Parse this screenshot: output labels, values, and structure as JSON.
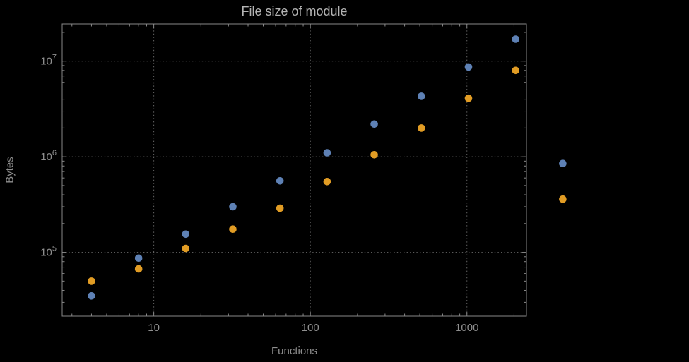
{
  "title": "File size of module",
  "xlabel": "Functions",
  "ylabel": "Bytes",
  "colors": {
    "background": "#000000",
    "frame": "#898989",
    "grid": "#686868",
    "tick_text": "#8f8f8f",
    "title_text": "#b4b4b4",
    "axis_label_text": "#8f8f8f",
    "series_blue": "#5e81b5",
    "series_orange": "#e19c24"
  },
  "chart_data": {
    "type": "scatter",
    "title": "File size of module",
    "xlabel": "Functions",
    "ylabel": "Bytes",
    "xscale": "log",
    "yscale": "log",
    "xlim": [
      2.6,
      2400
    ],
    "ylim": [
      21500,
      24500000
    ],
    "x_ticks": [
      10,
      100,
      1000
    ],
    "x_tick_labels": [
      "10",
      "100",
      "1000"
    ],
    "y_ticks": [
      100000,
      1000000,
      10000000
    ],
    "y_tick_labels": [
      "10^5",
      "10^6",
      "10^7"
    ],
    "grid": true,
    "grid_style": "dotted",
    "legend": "none",
    "clip_points": false,
    "x": [
      4,
      8,
      16,
      32,
      64,
      128,
      256,
      512,
      1024,
      2048,
      4096
    ],
    "series": [
      {
        "name": "series-blue",
        "color": "#5e81b5",
        "values": [
          35000,
          87000,
          155000,
          300000,
          560000,
          1100000,
          2200000,
          4300000,
          8700000,
          17000000,
          850000
        ]
      },
      {
        "name": "series-orange",
        "color": "#e19c24",
        "values": [
          50000,
          67000,
          110000,
          175000,
          290000,
          550000,
          1050000,
          2000000,
          4100000,
          8000000,
          360000
        ]
      }
    ]
  }
}
